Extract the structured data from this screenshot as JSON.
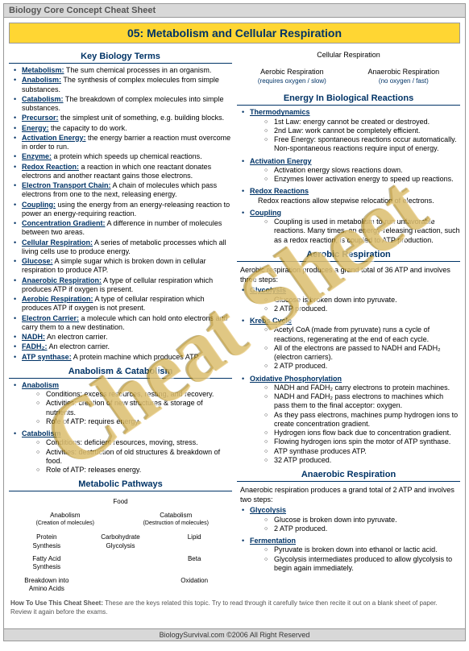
{
  "header": "Biology Core Concept Cheat Sheet",
  "title": "05: Metabolism and Cellular Respiration",
  "watermark": "Cheat Sheet",
  "footer_tip_label": "How To Use This Cheat Sheet:",
  "footer_tip_text": "These are the keys related this topic. Try to read through it carefully twice then recite it out on a blank sheet of paper. Review it again before the exams.",
  "footer": "BiologySurvival.com   ©2006 All Right Reserved",
  "left": {
    "s1_title": "Key Biology Terms",
    "terms": [
      {
        "t": "Metabolism:",
        "d": " The sum chemical processes in an organism."
      },
      {
        "t": "Anabolism:",
        "d": " The synthesis of complex molecules from simple substances."
      },
      {
        "t": "Catabolism:",
        "d": " The breakdown of complex molecules into simple substances."
      },
      {
        "t": "Precursor:",
        "d": " the simplest unit of something, e.g. building blocks."
      },
      {
        "t": "Energy:",
        "d": " the capacity to do work."
      },
      {
        "t": "Activation Energy:",
        "d": " the energy barrier a reaction must overcome in order to run."
      },
      {
        "t": "Enzyme:",
        "d": " a protein which speeds up chemical reactions."
      },
      {
        "t": "Redox Reaction:",
        "d": " a reaction in which one reactant donates electrons and another reactant gains those electrons."
      },
      {
        "t": "Electron Transport Chain:",
        "d": " A chain of molecules which pass electrons from one to the next, releasing energy."
      },
      {
        "t": "Coupling:",
        "d": " using the energy from an energy-releasing reaction to power an energy-requiring reaction."
      },
      {
        "t": "Concentration Gradient:",
        "d": " A difference in number of molecules between two areas."
      },
      {
        "t": "Cellular Respiration:",
        "d": " A series of metabolic processes which all living cells use to produce energy."
      },
      {
        "t": "Glucose:",
        "d": " A simple sugar which is broken down in cellular respiration to produce ATP."
      },
      {
        "t": "Anaerobic Respiration:",
        "d": " A type of cellular respiration which produces ATP if oxygen is present."
      },
      {
        "t": "Aerobic Respiration:",
        "d": " A type of cellular respiration which produces ATP if oxygen is not present."
      },
      {
        "t": "Electron Carrier:",
        "d": " a molecule which can hold onto electrons and carry them to a new destination."
      },
      {
        "t": "NADH:",
        "d": " An electron carrier."
      },
      {
        "t": "FADH₂:",
        "d": " An electron carrier."
      },
      {
        "t": "ATP synthase:",
        "d": " A protein machine which produces ATP."
      }
    ],
    "s2_title": "Anabolism & Catabolism",
    "anab_label": "Anabolism",
    "anab": [
      "Conditions: excess resources, resting, and recovery.",
      "Activities: creation of new structures & storage of nutrients.",
      "Role of ATP:  requires energy."
    ],
    "catab_label": "Catabolism",
    "catab": [
      "Conditions: deficient resources, moving, stress.",
      "Activities: destruction of old structures & breakdown of food.",
      "Role of ATP:  releases energy."
    ],
    "s3_title": "Metabolic Pathways",
    "flow": {
      "top": "Food",
      "anab_col_title": "Anabolism",
      "anab_col_sub": "(Creation of molecules)",
      "catab_col_title": "Catabolism",
      "catab_col_sub": "(Destruction of molecules)",
      "r1": [
        "Protein",
        "Carbohydrate",
        "Lipid"
      ],
      "r1_sub": [
        "Synthesis",
        "Glycolysis",
        ""
      ],
      "r2": [
        "Fatty Acid",
        "",
        "Beta"
      ],
      "r2_sub": [
        "Synthesis",
        "",
        ""
      ],
      "r3": [
        "Breakdown into",
        "",
        "Oxidation"
      ],
      "r3_sub": [
        "Amino Acids",
        "",
        ""
      ]
    }
  },
  "right": {
    "diagram": {
      "top": "Cellular Respiration",
      "left": "Aerobic Respiration",
      "left_note": "(requires oxygen / slow)",
      "right": "Anaerobic Respiration",
      "right_note": "(no oxygen / fast)"
    },
    "s1_title": "Energy In Biological Reactions",
    "thermo_label": "Thermodynamics",
    "thermo": [
      "1st Law: energy cannot be created or destroyed.",
      "2nd Law: work cannot be completely efficient.",
      "Free Energy: spontaneous reactions occur automatically. Non-spontaneous reactions require input of energy."
    ],
    "act_label": "Activation Energy",
    "act": [
      "Activation energy slows reactions down.",
      "Enzymes lower activation energy to speed up reactions."
    ],
    "redox_label": "Redox Reactions",
    "redox_text": "Redox reactions allow stepwise relocation of electrons.",
    "coupling_label": "Coupling",
    "coupling": [
      "Coupling is used in metabolism to run unfavorable reactions. Many times, an energy-releasing reaction, such as a redox reaction, is coupled to ATP production."
    ],
    "s2_title": "Aerobic Respiration",
    "aer_intro": "Aerobic respiration produces a grand total of 36 ATP and involves three steps:",
    "gly_label": "Glycolysis",
    "gly": [
      "Glucose is broken down into pyruvate.",
      "2 ATP produced."
    ],
    "krebs_label": "Krebs Cycle",
    "krebs": [
      "Acetyl CoA (made from pyruvate) runs a cycle of reactions, regenerating at the end of each cycle.",
      "All of the electrons are passed to NADH and FADH₂ (electron carriers).",
      "2 ATP produced."
    ],
    "ox_label": "Oxidative Phosphorylation",
    "ox": [
      "NADH and FADH₂ carry electrons to protein machines.",
      "NADH and FADH₂  pass electrons to machines which pass them to the final acceptor: oxygen.",
      "As they pass electrons, machines pump hydrogen ions to create concentration gradient.",
      "Hydrogen ions flow back due to concentration gradient.",
      "Flowing hydrogen ions spin the motor of ATP synthase.",
      "ATP synthase produces ATP.",
      "32 ATP produced."
    ],
    "s3_title": "Anaerobic Respiration",
    "anaer_intro": "Anaerobic respiration produces a grand total of 2 ATP and involves two steps:",
    "gly2_label": "Glycolysis",
    "gly2": [
      "Glucose is broken down into pyruvate.",
      "2 ATP produced."
    ],
    "ferm_label": "Fermentation",
    "ferm": [
      "Pyruvate is broken down into ethanol or lactic acid.",
      "Glycolysis intermediates produced to allow glycolysis to begin again immediately."
    ]
  }
}
